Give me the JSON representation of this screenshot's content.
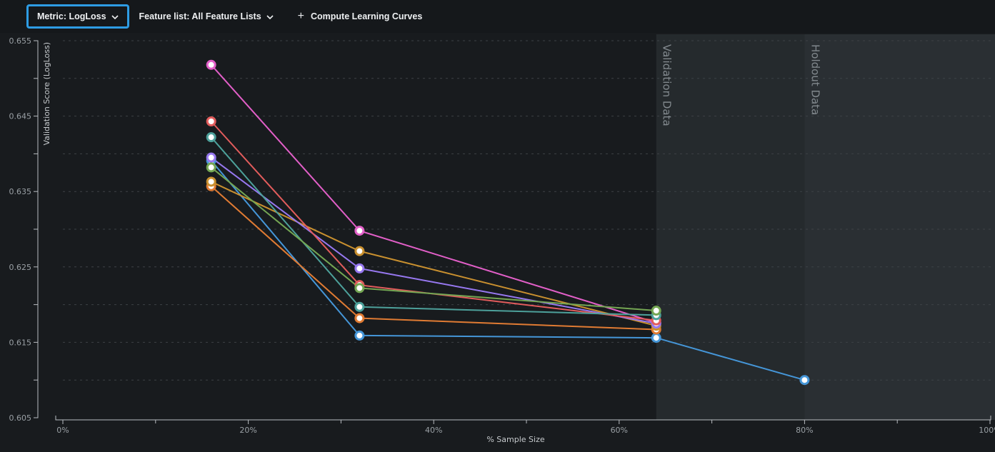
{
  "toolbar": {
    "metric_button": {
      "label": "Metric: LogLoss",
      "icon": "chevron-down",
      "highlight_color": "#2e9ce4"
    },
    "feature_list_button": {
      "label": "Feature list: All Feature Lists",
      "icon": "chevron-down"
    },
    "compute_button": {
      "label": "Compute Learning Curves",
      "icon": "plus"
    }
  },
  "chart_data": {
    "type": "line",
    "title": "",
    "xlabel": "% Sample Size",
    "ylabel": "Validation Score (LogLoss)",
    "xlim": [
      0,
      100
    ],
    "ylim": [
      0.605,
      0.655
    ],
    "x_ticks_labeled": [
      0,
      20,
      40,
      60,
      80,
      100
    ],
    "x_ticks_minor": [
      10,
      30,
      50,
      70,
      90
    ],
    "y_tick_step": 0.005,
    "y_ticks_labeled": [
      0.655,
      0.645,
      0.635,
      0.625,
      0.615,
      0.605
    ],
    "grid": "horizontal-dashed",
    "legend": "none",
    "regions": [
      {
        "label": "Validation Data",
        "start_pct": 64,
        "fill": "#252a2d"
      },
      {
        "label": "Holdout Data",
        "start_pct": 80,
        "fill": "#2a2f33"
      }
    ],
    "series": [
      {
        "name": "series-blue",
        "color": "#4596d8",
        "points": [
          [
            16,
            0.6391
          ],
          [
            32,
            0.6159
          ],
          [
            64,
            0.6156
          ],
          [
            80,
            0.61
          ]
        ]
      },
      {
        "name": "series-orange",
        "color": "#e07b33",
        "points": [
          [
            16,
            0.6357
          ],
          [
            32,
            0.6182
          ],
          [
            64,
            0.6167
          ]
        ]
      },
      {
        "name": "series-amber",
        "color": "#c9902f",
        "points": [
          [
            16,
            0.6363
          ],
          [
            32,
            0.6271
          ],
          [
            64,
            0.6172
          ]
        ]
      },
      {
        "name": "series-magenta",
        "color": "#e25fc8",
        "points": [
          [
            16,
            0.6518
          ],
          [
            32,
            0.6298
          ],
          [
            64,
            0.6176
          ]
        ]
      },
      {
        "name": "series-purple",
        "color": "#9778f0",
        "points": [
          [
            16,
            0.6395
          ],
          [
            32,
            0.6248
          ],
          [
            64,
            0.6175
          ]
        ]
      },
      {
        "name": "series-red",
        "color": "#e25c5c",
        "points": [
          [
            16,
            0.6443
          ],
          [
            32,
            0.6226
          ],
          [
            64,
            0.6179
          ]
        ]
      },
      {
        "name": "series-teal",
        "color": "#4da19b",
        "points": [
          [
            16,
            0.6422
          ],
          [
            32,
            0.6197
          ],
          [
            64,
            0.6186
          ]
        ]
      },
      {
        "name": "series-green",
        "color": "#74a653",
        "points": [
          [
            16,
            0.6382
          ],
          [
            32,
            0.6222
          ],
          [
            64,
            0.6192
          ]
        ]
      }
    ],
    "style": {
      "background": "#181b1e",
      "grid_color": "#3d4246",
      "axis_color": "#b9bdc1",
      "tick_label_color": "#9aa0a5",
      "axis_title_color": "#c6cacd",
      "region_label_color": "#82898e"
    }
  }
}
